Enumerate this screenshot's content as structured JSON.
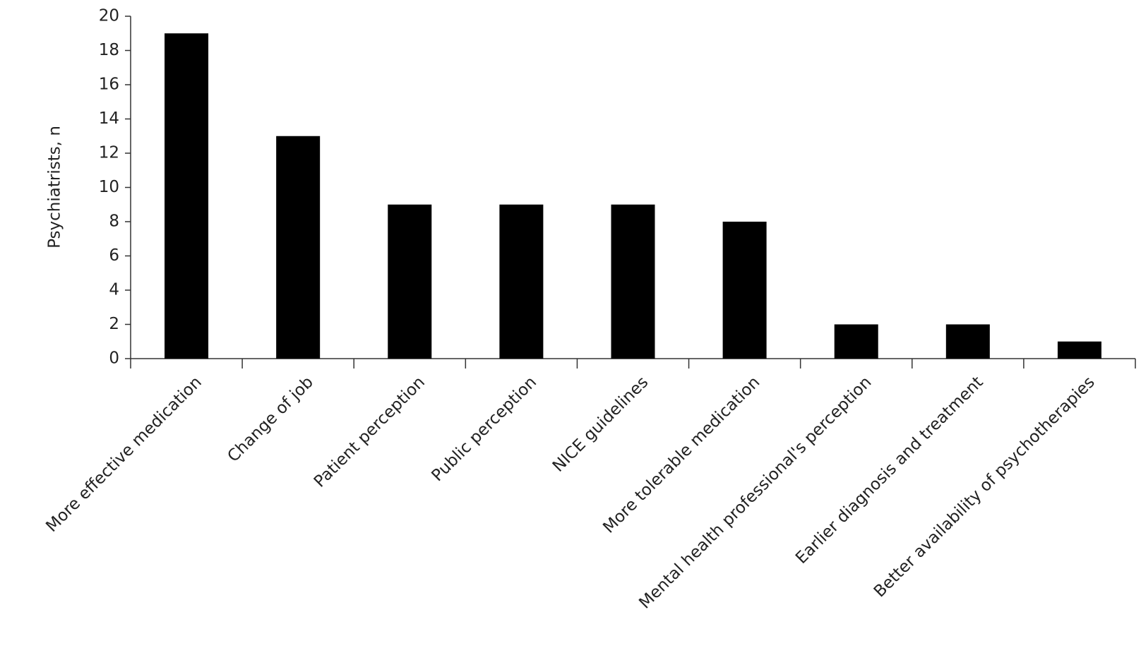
{
  "chart_data": {
    "type": "bar",
    "y_label": "Psychiatrists, n",
    "categories": [
      "More effective medication",
      "Change of job",
      "Patient perception",
      "Public perception",
      "NICE guidelines",
      "More tolerable medication",
      "Mental health professional's perception",
      "Earlier diagnosis and treatment",
      "Better availability of psychotherapies"
    ],
    "values": [
      19,
      13,
      9,
      9,
      9,
      8,
      2,
      2,
      1
    ],
    "color": "#000000",
    "ylim": [
      0,
      20
    ],
    "yticks": [
      0,
      2,
      4,
      6,
      8,
      10,
      12,
      14,
      16,
      18,
      20
    ],
    "grid": false
  }
}
